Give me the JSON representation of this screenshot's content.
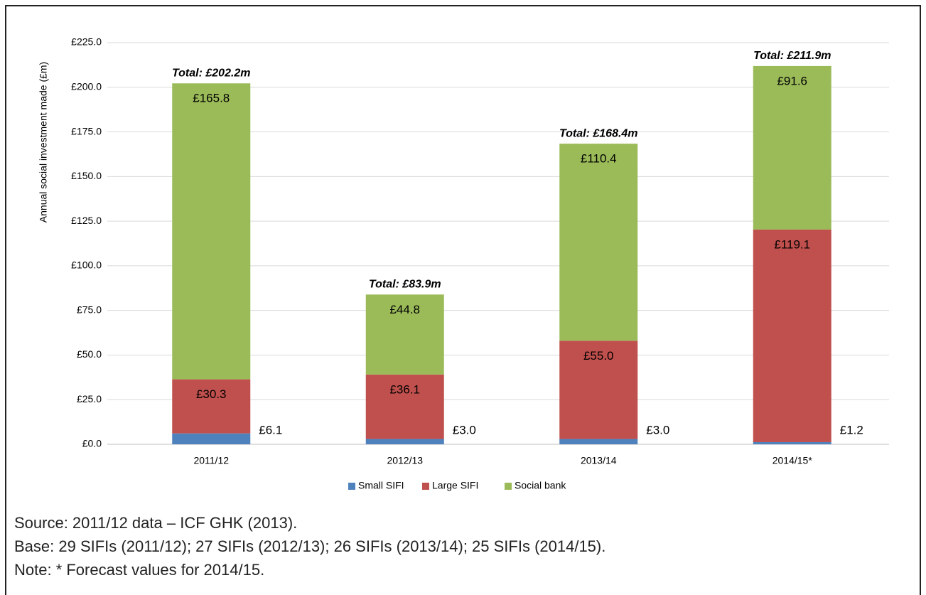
{
  "chart_data": {
    "type": "bar",
    "stacked": true,
    "y_label": "Annual social investment made (£m)",
    "categories": [
      "2011/12",
      "2012/13",
      "2013/14",
      "2014/15*"
    ],
    "series": [
      {
        "name": "Small SIFI",
        "color": "#4f81bd",
        "values": [
          6.1,
          3.0,
          3.0,
          1.2
        ],
        "value_labels": [
          "£6.1",
          "£3.0",
          "£3.0",
          "£1.2"
        ]
      },
      {
        "name": "Large SIFI",
        "color": "#c0504d",
        "values": [
          30.3,
          36.1,
          55.0,
          119.1
        ],
        "value_labels": [
          "£30.3",
          "£36.1",
          "£55.0",
          "£119.1"
        ]
      },
      {
        "name": "Social bank",
        "color": "#9bbb59",
        "values": [
          165.8,
          44.8,
          110.4,
          91.6
        ],
        "value_labels": [
          "£165.8",
          "£44.8",
          "£110.4",
          "£91.6"
        ]
      }
    ],
    "totals": [
      "Total: £202.2m",
      "Total: £83.9m",
      "Total: £168.4m",
      "Total: £211.9m"
    ],
    "ylim": [
      0,
      225
    ],
    "yticks": [
      {
        "value": 0,
        "label": "£0.0"
      },
      {
        "value": 25,
        "label": "£25.0"
      },
      {
        "value": 50,
        "label": "£50.0"
      },
      {
        "value": 75,
        "label": "£75.0"
      },
      {
        "value": 100,
        "label": "£100.0"
      },
      {
        "value": 125,
        "label": "£125.0"
      },
      {
        "value": 150,
        "label": "£150.0"
      },
      {
        "value": 175,
        "label": "£175.0"
      },
      {
        "value": 200,
        "label": "£200.0"
      },
      {
        "value": 225,
        "label": "£225.0"
      }
    ],
    "grid": true,
    "legend": "bottom",
    "notes": [
      "Source: 2011/12 data – ICF GHK (2013).",
      "Base: 29 SIFIs (2011/12); 27 SIFIs (2012/13); 26 SIFIs (2013/14); 25 SIFIs (2014/15).",
      "Note: * Forecast values for 2014/15."
    ]
  }
}
